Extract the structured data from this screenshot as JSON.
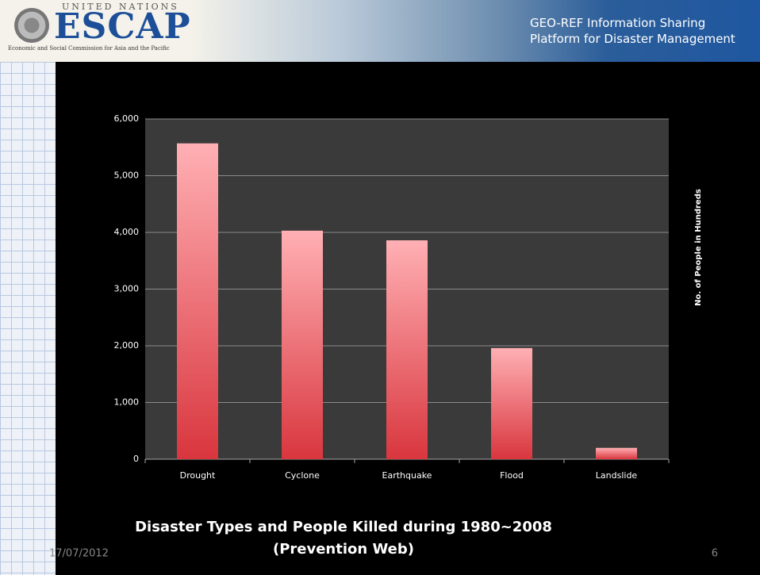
{
  "header": {
    "org_small": "UNITED NATIONS",
    "org": "ESCAP",
    "org_full": "Economic and Social Commission for Asia and the Pacific",
    "tagline": [
      "GEO-REF Information Sharing",
      "Platform for Disaster Management"
    ]
  },
  "chart_data": {
    "type": "bar",
    "title": "Disaster Types and People Killed during 1980~2008",
    "subtitle": "(Prevention Web)",
    "y_label": "No. of People in Hundreds",
    "categories": [
      "Drought",
      "Cyclone",
      "Earthquake",
      "Flood",
      "Landslide"
    ],
    "values": [
      5570,
      4030,
      3860,
      1960,
      200
    ],
    "color": "#d9363e",
    "ylim": [
      0,
      6000
    ],
    "yticks": [
      0,
      {
        "value": 1000,
        "label": "1,000"
      },
      {
        "value": 2000,
        "label": "2,000"
      },
      {
        "value": 3000,
        "label": "3,000"
      },
      {
        "value": 4000,
        "label": "4,000"
      },
      {
        "value": 5000,
        "label": "5,000"
      },
      {
        "value": 6000,
        "label": "6,000"
      }
    ],
    "grid": true
  },
  "footer": {
    "date": "17/07/2012",
    "page": "6"
  }
}
